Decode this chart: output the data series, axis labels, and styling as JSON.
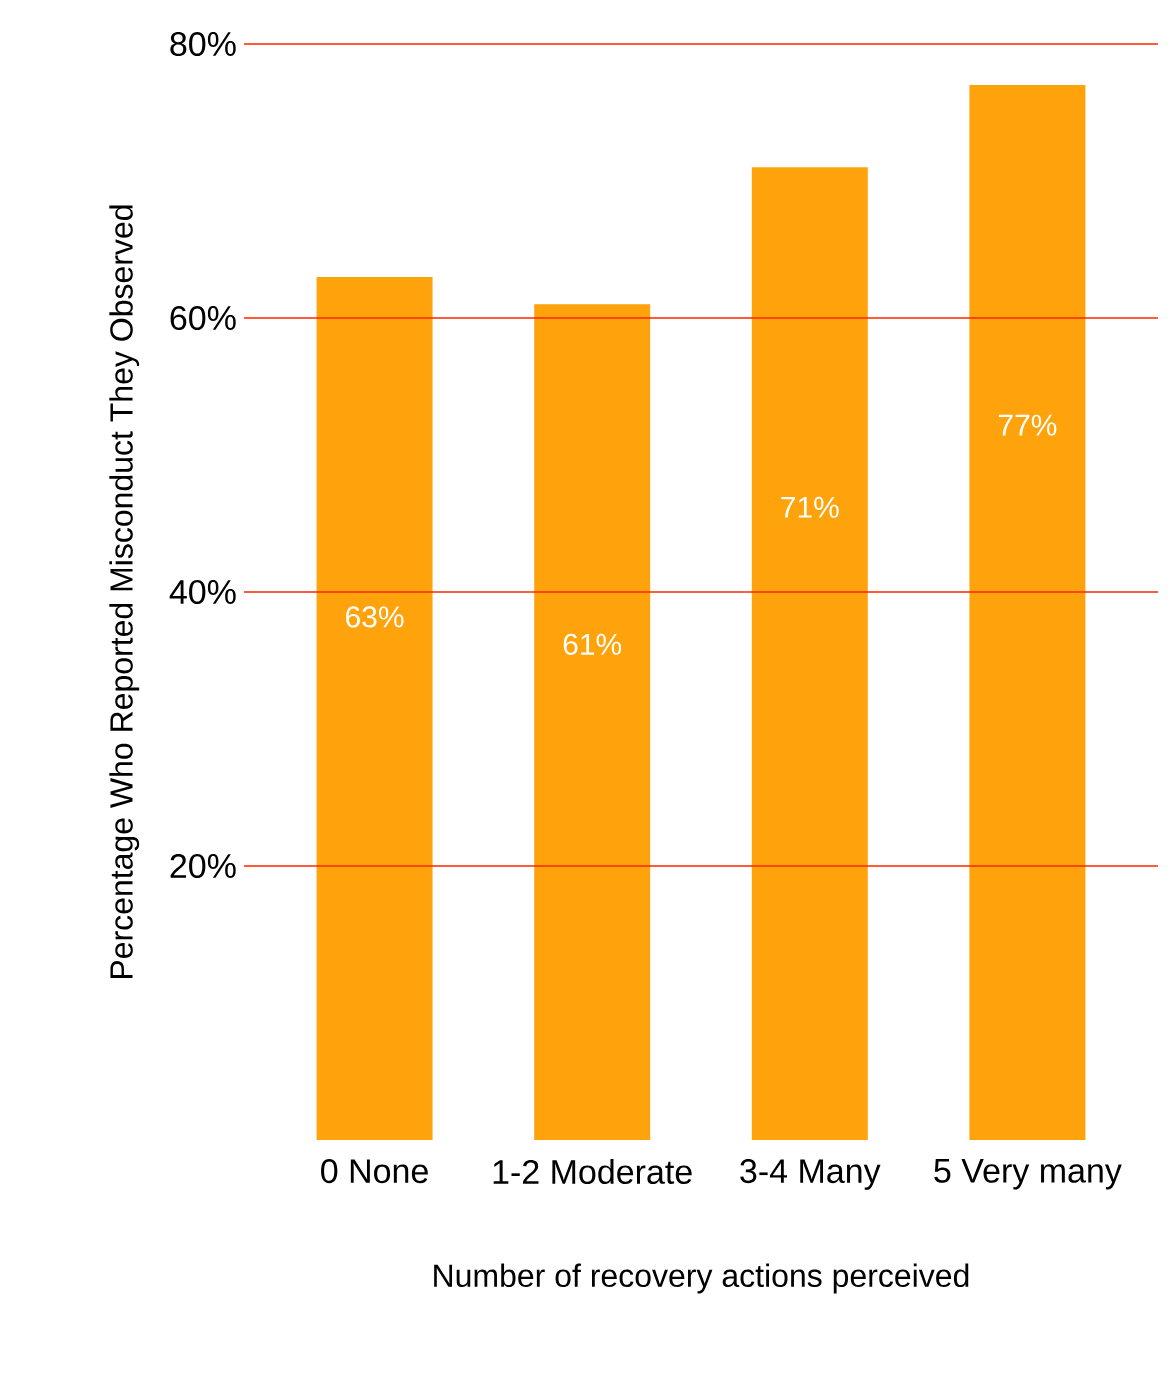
{
  "chart_data": {
    "type": "bar",
    "xlabel": "Number of recovery actions perceived",
    "ylabel": "Percentage Who Reported Misconduct They Observed",
    "categories": [
      "0 None",
      "1-2 Moderate",
      "3-4 Many",
      "5 Very many"
    ],
    "values": [
      63,
      61,
      71,
      77
    ],
    "value_labels": [
      "63%",
      "61%",
      "71%",
      "77%"
    ],
    "color": "#ffa30d",
    "ylim": [
      0,
      80
    ],
    "yticks": [
      {
        "value": 20,
        "label": "20%"
      },
      {
        "value": 40,
        "label": "40%"
      },
      {
        "value": 60,
        "label": "60%"
      },
      {
        "value": 80,
        "label": "80%"
      }
    ],
    "grid": "y"
  }
}
